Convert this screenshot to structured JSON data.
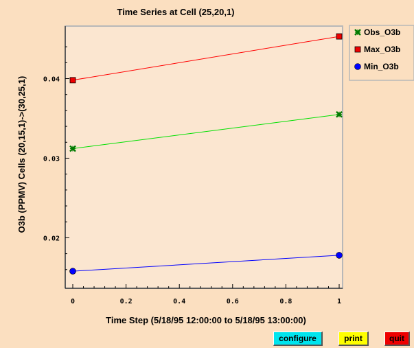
{
  "window": {
    "title": "Time Series at Cell (25,20,1)"
  },
  "chart_data": {
    "type": "line",
    "title": "Time Series at Cell (25,20,1)",
    "xlabel": "Time Step (5/18/95 12:00:00 to 5/18/95 13:00:00)",
    "ylabel": "O3b (PPMV) Cells (20,15,1)->(30,25,1)",
    "xlim": [
      0,
      1
    ],
    "ylim": [
      0.0146,
      0.0466
    ],
    "x_ticks": [
      "0",
      "0.2",
      "0.4",
      "0.6",
      "0.8",
      "1"
    ],
    "x_tick_values": [
      0,
      0.2,
      0.4,
      0.6,
      0.8,
      1
    ],
    "y_ticks": [
      "0.02",
      "0.03",
      "0.04"
    ],
    "y_tick_values": [
      0.02,
      0.03,
      0.04
    ],
    "x": [
      0,
      1
    ],
    "series": [
      {
        "name": "Obs_O3b",
        "values": [
          0.0312,
          0.0355
        ],
        "color": "#00e000",
        "marker": "x",
        "marker_color": "#007a00"
      },
      {
        "name": "Max_O3b",
        "values": [
          0.0398,
          0.0453
        ],
        "color": "#ff0000",
        "marker": "square",
        "marker_color": "#ee0000"
      },
      {
        "name": "Min_O3b",
        "values": [
          0.0158,
          0.0178
        ],
        "color": "#0000ff",
        "marker": "circle",
        "marker_color": "#0000ff"
      }
    ],
    "legend": "top-right",
    "grid": false
  },
  "colors": {
    "page_background": "#fbdfc0",
    "plot_background": "#fbe6d0"
  },
  "buttons": {
    "configure": "configure",
    "print": "print",
    "quit": "quit"
  }
}
